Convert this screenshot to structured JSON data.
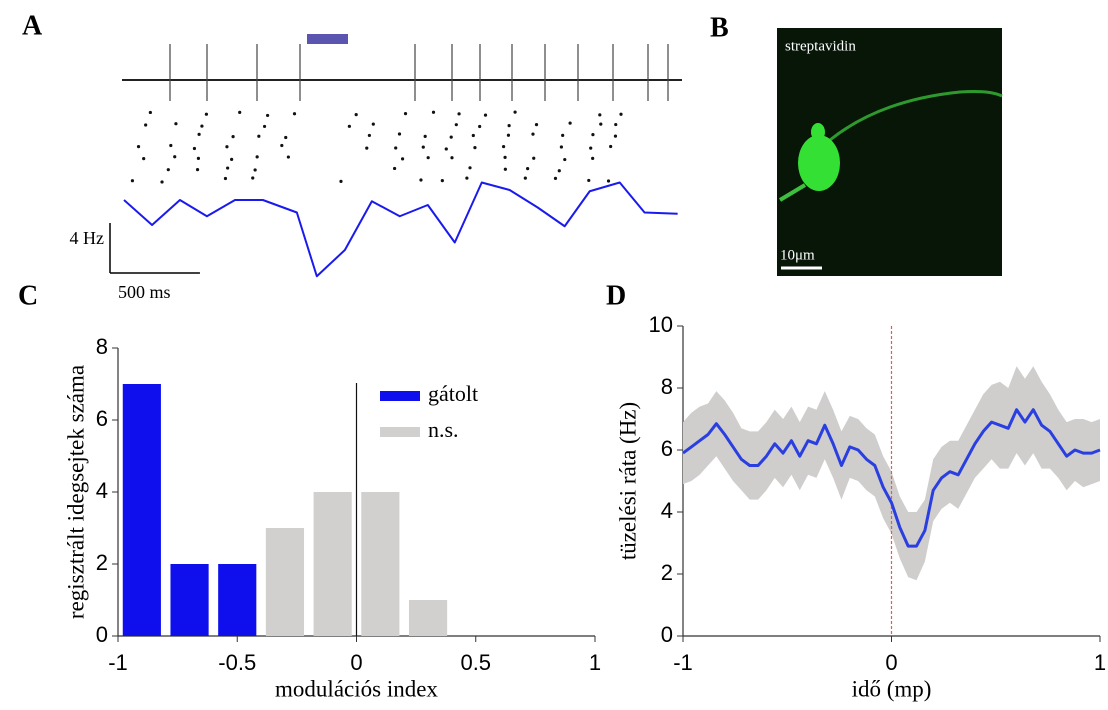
{
  "panel_labels": [
    "A",
    "B",
    "C",
    "D"
  ],
  "image": {
    "label": "streptavidin",
    "scale_label": "10μm"
  },
  "chart_data": [
    {
      "type": "line",
      "color": "#1a1aee",
      "x": [
        0,
        156,
        311,
        461,
        617,
        772,
        961,
        1072,
        1228,
        1378,
        1533,
        1689,
        1839,
        1989,
        2144,
        2300,
        2450,
        2589,
        2756,
        2894,
        3078
      ],
      "values": [
        7.2,
        5.2,
        7.2,
        5.9,
        7.2,
        7.2,
        6.2,
        1.1,
        3.2,
        7.1,
        5.9,
        6.8,
        3.8,
        8.6,
        8.0,
        6.6,
        5.1,
        7.9,
        8.6,
        6.2,
        6.1
      ],
      "xlim": [
        0,
        3080
      ],
      "ylim": [
        0,
        10
      ],
      "scale_bars": [
        {
          "value": 4,
          "label": "4 Hz"
        },
        {
          "value": 500,
          "label": "500 ms"
        }
      ]
    },
    {
      "type": "histogram",
      "bins": [
        -1,
        -0.8,
        -0.6,
        -0.4,
        -0.2,
        0,
        0.2,
        0.4,
        0.6,
        0.8,
        1
      ],
      "series": [
        {
          "name": "gátolt",
          "color": "#0f0fee",
          "values": [
            7,
            2,
            2,
            0,
            0,
            0,
            0,
            0,
            0,
            0
          ]
        },
        {
          "name": "n.s.",
          "color": "#d2cfcf",
          "values": [
            0,
            0,
            0,
            3,
            4,
            4,
            1,
            0,
            0,
            0
          ]
        }
      ],
      "xlim": [
        -1,
        1
      ],
      "ylim": [
        0,
        8
      ],
      "xticks": [
        -1,
        -0.5,
        0,
        0.5,
        1
      ],
      "yticks": [
        0,
        2,
        4,
        6,
        8
      ],
      "xlabel": "modulációs index",
      "ylabel": "regisztrált idegsejtek száma",
      "reference_line": 0,
      "legend": "upper right"
    },
    {
      "type": "line",
      "color": "#2a3fe0",
      "band_color": "#d0cdcd",
      "x": [
        -1,
        -0.96,
        -0.92,
        -0.88,
        -0.84,
        -0.8,
        -0.76,
        -0.72,
        -0.68,
        -0.64,
        -0.6,
        -0.56,
        -0.52,
        -0.48,
        -0.44,
        -0.4,
        -0.36,
        -0.32,
        -0.28,
        -0.24,
        -0.2,
        -0.16,
        -0.12,
        -0.08,
        -0.04,
        0,
        0.04,
        0.08,
        0.12,
        0.16,
        0.2,
        0.24,
        0.28,
        0.32,
        0.36,
        0.4,
        0.44,
        0.48,
        0.52,
        0.56,
        0.6,
        0.64,
        0.68,
        0.72,
        0.76,
        0.8,
        0.84,
        0.88,
        0.92,
        0.96,
        1
      ],
      "values": [
        5.9,
        6.1,
        6.3,
        6.5,
        6.85,
        6.5,
        6.1,
        5.7,
        5.5,
        5.5,
        5.8,
        6.2,
        5.9,
        6.3,
        5.8,
        6.3,
        6.2,
        6.8,
        6.2,
        5.5,
        6.1,
        6.0,
        5.7,
        5.5,
        4.8,
        4.3,
        3.5,
        2.9,
        2.9,
        3.4,
        4.7,
        5.1,
        5.3,
        5.2,
        5.7,
        6.2,
        6.6,
        6.9,
        6.8,
        6.7,
        7.3,
        6.9,
        7.3,
        6.8,
        6.6,
        6.2,
        5.8,
        6.0,
        5.9,
        5.9,
        6.0
      ],
      "band_upper": [
        6.9,
        7.2,
        7.4,
        7.5,
        7.9,
        7.6,
        7.2,
        6.7,
        6.6,
        6.6,
        6.9,
        7.3,
        7.0,
        7.4,
        6.9,
        7.4,
        7.3,
        7.9,
        7.3,
        6.6,
        7.1,
        7.0,
        6.7,
        6.5,
        5.8,
        5.3,
        4.5,
        4.0,
        4.0,
        4.4,
        5.7,
        6.1,
        6.3,
        6.3,
        6.8,
        7.3,
        7.8,
        8.1,
        8.2,
        8.0,
        8.7,
        8.3,
        8.7,
        8.2,
        7.8,
        7.3,
        6.9,
        7.0,
        7.0,
        6.9,
        7.0
      ],
      "band_lower": [
        4.9,
        5.0,
        5.2,
        5.5,
        5.8,
        5.4,
        5.0,
        4.7,
        4.4,
        4.4,
        4.7,
        5.1,
        4.8,
        5.2,
        4.7,
        5.2,
        5.1,
        5.7,
        5.1,
        4.4,
        5.1,
        5.0,
        4.7,
        4.5,
        3.8,
        3.3,
        2.5,
        1.9,
        1.8,
        2.4,
        3.7,
        4.1,
        4.3,
        4.1,
        4.6,
        5.1,
        5.4,
        5.7,
        5.4,
        5.4,
        5.9,
        5.5,
        5.9,
        5.4,
        5.4,
        5.1,
        4.7,
        5.0,
        4.8,
        4.9,
        5.0
      ],
      "xlim": [
        -1,
        1
      ],
      "ylim": [
        0,
        10
      ],
      "xticks": [
        -1,
        0,
        1
      ],
      "yticks": [
        0,
        2,
        4,
        6,
        8,
        10
      ],
      "xlabel": "idő (mp)",
      "ylabel": "tüzelési ráta (Hz)",
      "reference_line": 0,
      "reference_color": "#e06040"
    }
  ]
}
